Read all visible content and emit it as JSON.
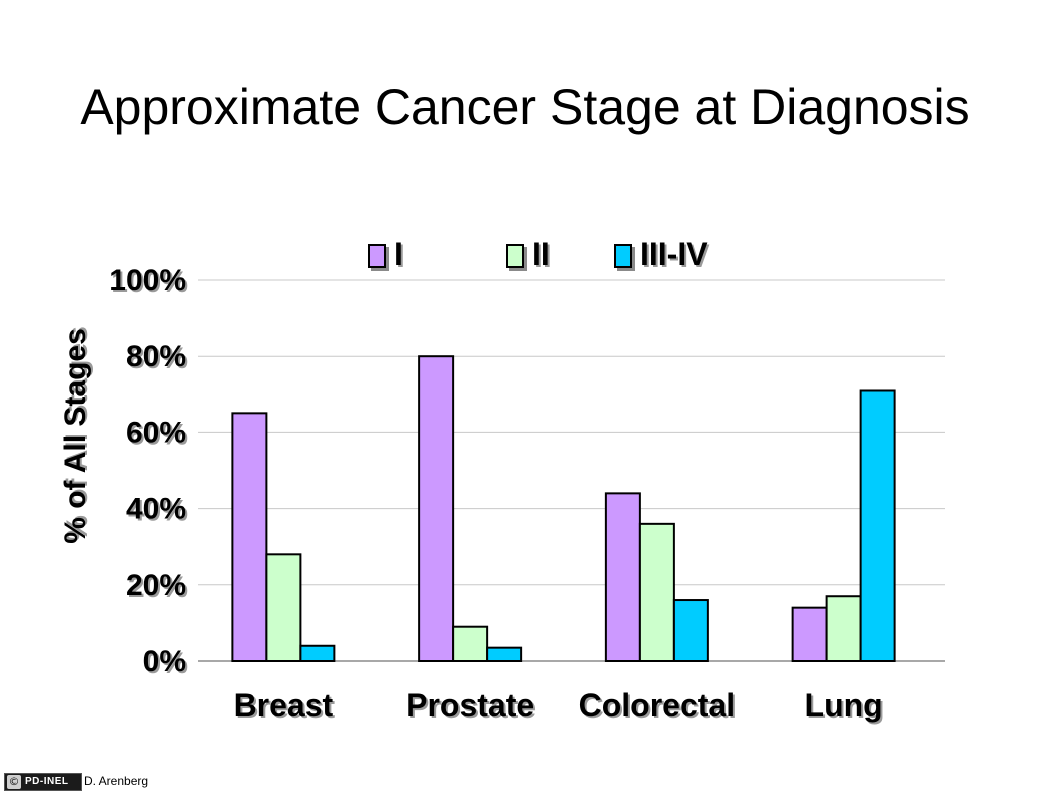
{
  "chart_data": {
    "type": "bar",
    "title": "Approximate Cancer Stage at Diagnosis",
    "ylabel": "% of All Stages",
    "xlabel": "",
    "categories": [
      "Breast",
      "Prostate",
      "Colorectal",
      "Lung"
    ],
    "series": [
      {
        "name": "I",
        "values": [
          65,
          80,
          44,
          14
        ],
        "color": "#cc99ff"
      },
      {
        "name": "II",
        "values": [
          28,
          9,
          36,
          17
        ],
        "color": "#ccffcc"
      },
      {
        "name": "III-IV",
        "values": [
          4,
          3.5,
          16,
          71
        ],
        "color": "#00ccff"
      }
    ],
    "ylim": [
      0,
      100
    ],
    "yticks": [
      0,
      20,
      40,
      60,
      80,
      100
    ],
    "ytick_labels": [
      "0%",
      "20%",
      "40%",
      "60%",
      "80%",
      "100%"
    ],
    "grid": true,
    "legend_position": "top"
  },
  "credit": {
    "badge_symbol": "©",
    "badge_text": "PD-INEL",
    "author": "D. Arenberg"
  }
}
